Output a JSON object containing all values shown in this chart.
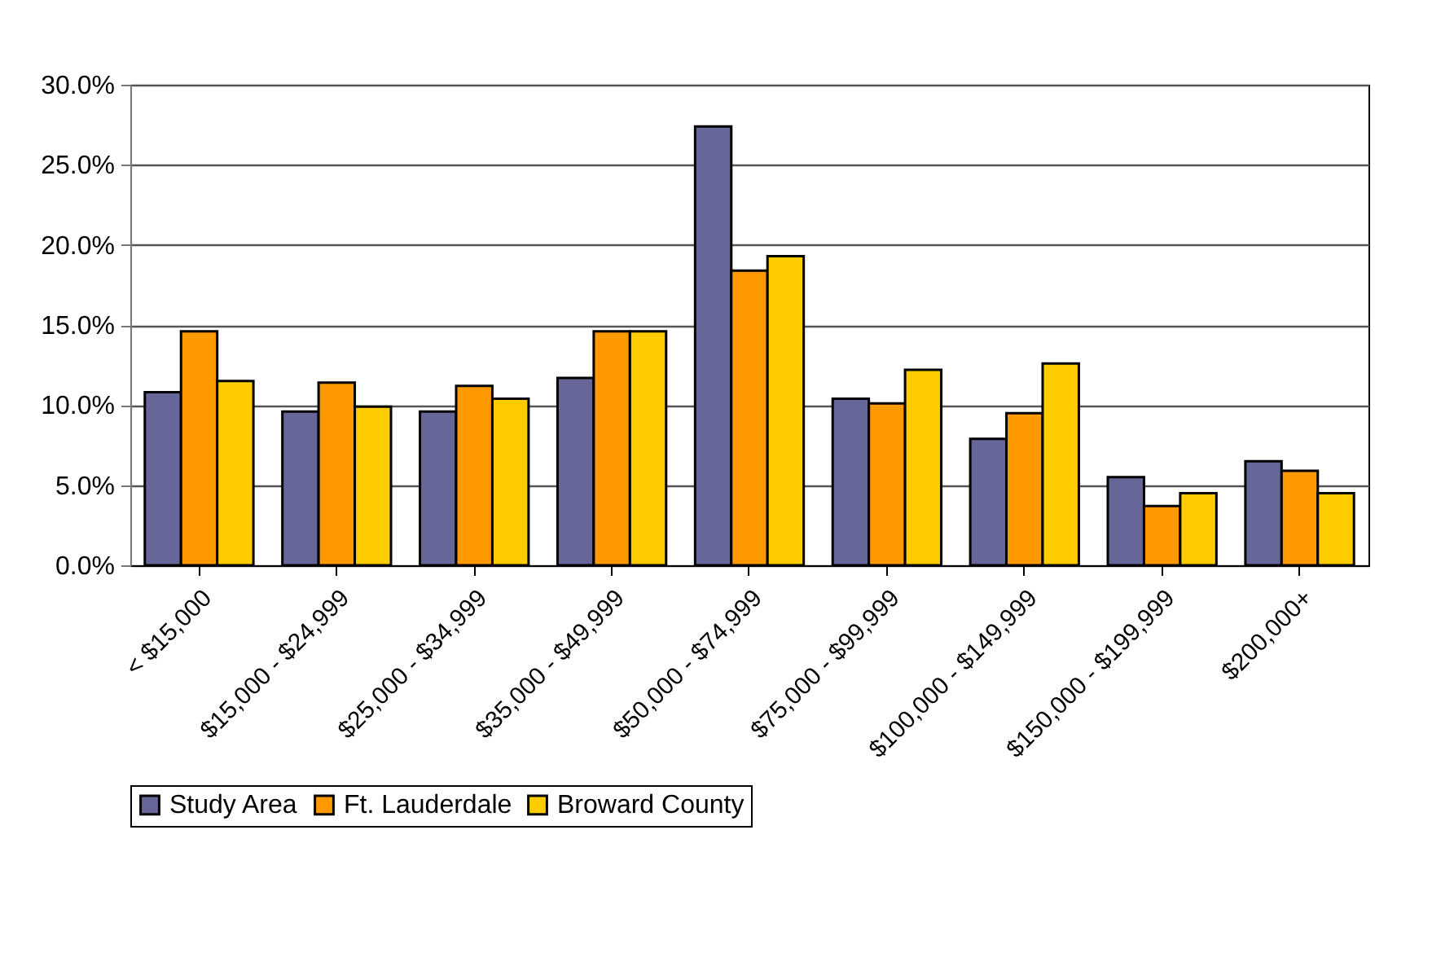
{
  "chart_data": {
    "type": "bar",
    "categories": [
      "< $15,000",
      "$15,000 - $24,999",
      "$25,000 - $34,999",
      "$35,000 - $49,999",
      "$50,000 - $74,999",
      "$75,000 - $99,999",
      "$100,000 - $149,999",
      "$150,000 - $199,999",
      "$200,000+"
    ],
    "series": [
      {
        "name": "Study Area",
        "color": "#666699",
        "values": [
          10.8,
          9.6,
          9.6,
          11.7,
          27.4,
          10.4,
          7.9,
          5.5,
          6.5
        ]
      },
      {
        "name": "Ft. Lauderdale",
        "color": "#ff9900",
        "values": [
          14.6,
          11.4,
          11.2,
          14.6,
          18.4,
          10.1,
          9.5,
          3.7,
          5.9
        ]
      },
      {
        "name": "Broward County",
        "color": "#ffcc00",
        "values": [
          11.5,
          9.9,
          10.4,
          14.6,
          19.3,
          12.2,
          12.6,
          4.5,
          4.5
        ]
      }
    ],
    "ylim": [
      0,
      30
    ],
    "yticks": [
      {
        "value": 0,
        "label": "0.0%"
      },
      {
        "value": 5,
        "label": "5.0%"
      },
      {
        "value": 10,
        "label": "10.0%"
      },
      {
        "value": 15,
        "label": "15.0%"
      },
      {
        "value": 20,
        "label": "20.0%"
      },
      {
        "value": 25,
        "label": "25.0%"
      },
      {
        "value": 30,
        "label": "30.0%"
      }
    ],
    "grid": "y",
    "legend": "bottom"
  }
}
